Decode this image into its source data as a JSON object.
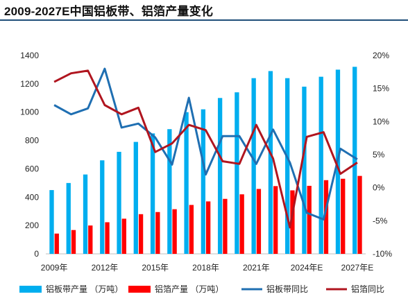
{
  "title": "2009-2027E中国铝板带、铝箔产量变化",
  "chart_data": {
    "type": "bar",
    "title": "2009-2027E中国铝板带、铝箔产量变化",
    "categories": [
      "2009年",
      "2010年",
      "2011年",
      "2012年",
      "2013年",
      "2014年",
      "2015年",
      "2016年",
      "2017年",
      "2018年",
      "2019年",
      "2020年",
      "2021年",
      "2022年",
      "2023年",
      "2024年E",
      "2025年E",
      "2026年E",
      "2027年E"
    ],
    "x_tick_labels": [
      "2009年",
      "",
      "",
      "2012年",
      "",
      "",
      "2015年",
      "",
      "",
      "2018年",
      "",
      "",
      "2021年",
      "",
      "",
      "2024年E",
      "",
      "",
      "2027年E"
    ],
    "y_left": {
      "ylim": [
        0,
        1400
      ],
      "ticks": [
        "0",
        "200",
        "400",
        "600",
        "800",
        "1000",
        "1200",
        "1400"
      ]
    },
    "y_right": {
      "ylim": [
        -10,
        20
      ],
      "ticks": [
        "-10%",
        "-5%",
        "0%",
        "5%",
        "10%",
        "15%",
        "20%"
      ]
    },
    "bar_series": [
      {
        "name": "铝板带产量 （万吨）",
        "color": "#00aeef",
        "axis": "left",
        "values": [
          450,
          500,
          560,
          660,
          720,
          790,
          850,
          880,
          1000,
          1020,
          1100,
          1140,
          1240,
          1290,
          1240,
          1180,
          1250,
          1300,
          1320
        ]
      },
      {
        "name": "铝箔产量 （万吨）",
        "color": "#ff0000",
        "axis": "left",
        "values": [
          143,
          168,
          200,
          223,
          248,
          280,
          295,
          315,
          345,
          370,
          388,
          420,
          458,
          478,
          448,
          480,
          520,
          530,
          550
        ]
      }
    ],
    "line_series": [
      {
        "name": "铝板带同比",
        "color": "#1f6fb2",
        "axis": "right",
        "values": [
          12.5,
          11.1,
          12.0,
          18.0,
          9.1,
          9.7,
          7.6,
          3.5,
          13.6,
          2.0,
          7.8,
          7.8,
          3.6,
          8.8,
          3.8,
          -3.8,
          -4.8,
          5.9,
          4.3
        ]
      },
      {
        "name": "铝箔同比",
        "color": "#b0151f",
        "axis": "right",
        "values": [
          16.0,
          17.3,
          17.7,
          12.5,
          11.1,
          12.1,
          5.4,
          6.7,
          9.5,
          8.7,
          4.0,
          3.6,
          9.5,
          4.4,
          -6.0,
          7.7,
          8.4,
          2.1,
          3.8
        ]
      }
    ],
    "legend": [
      "铝板带产量 （万吨）",
      "铝箔产量 （万吨）",
      "铝板带同比",
      "铝箔同比"
    ],
    "legend_position": "bottom",
    "grid": false
  }
}
